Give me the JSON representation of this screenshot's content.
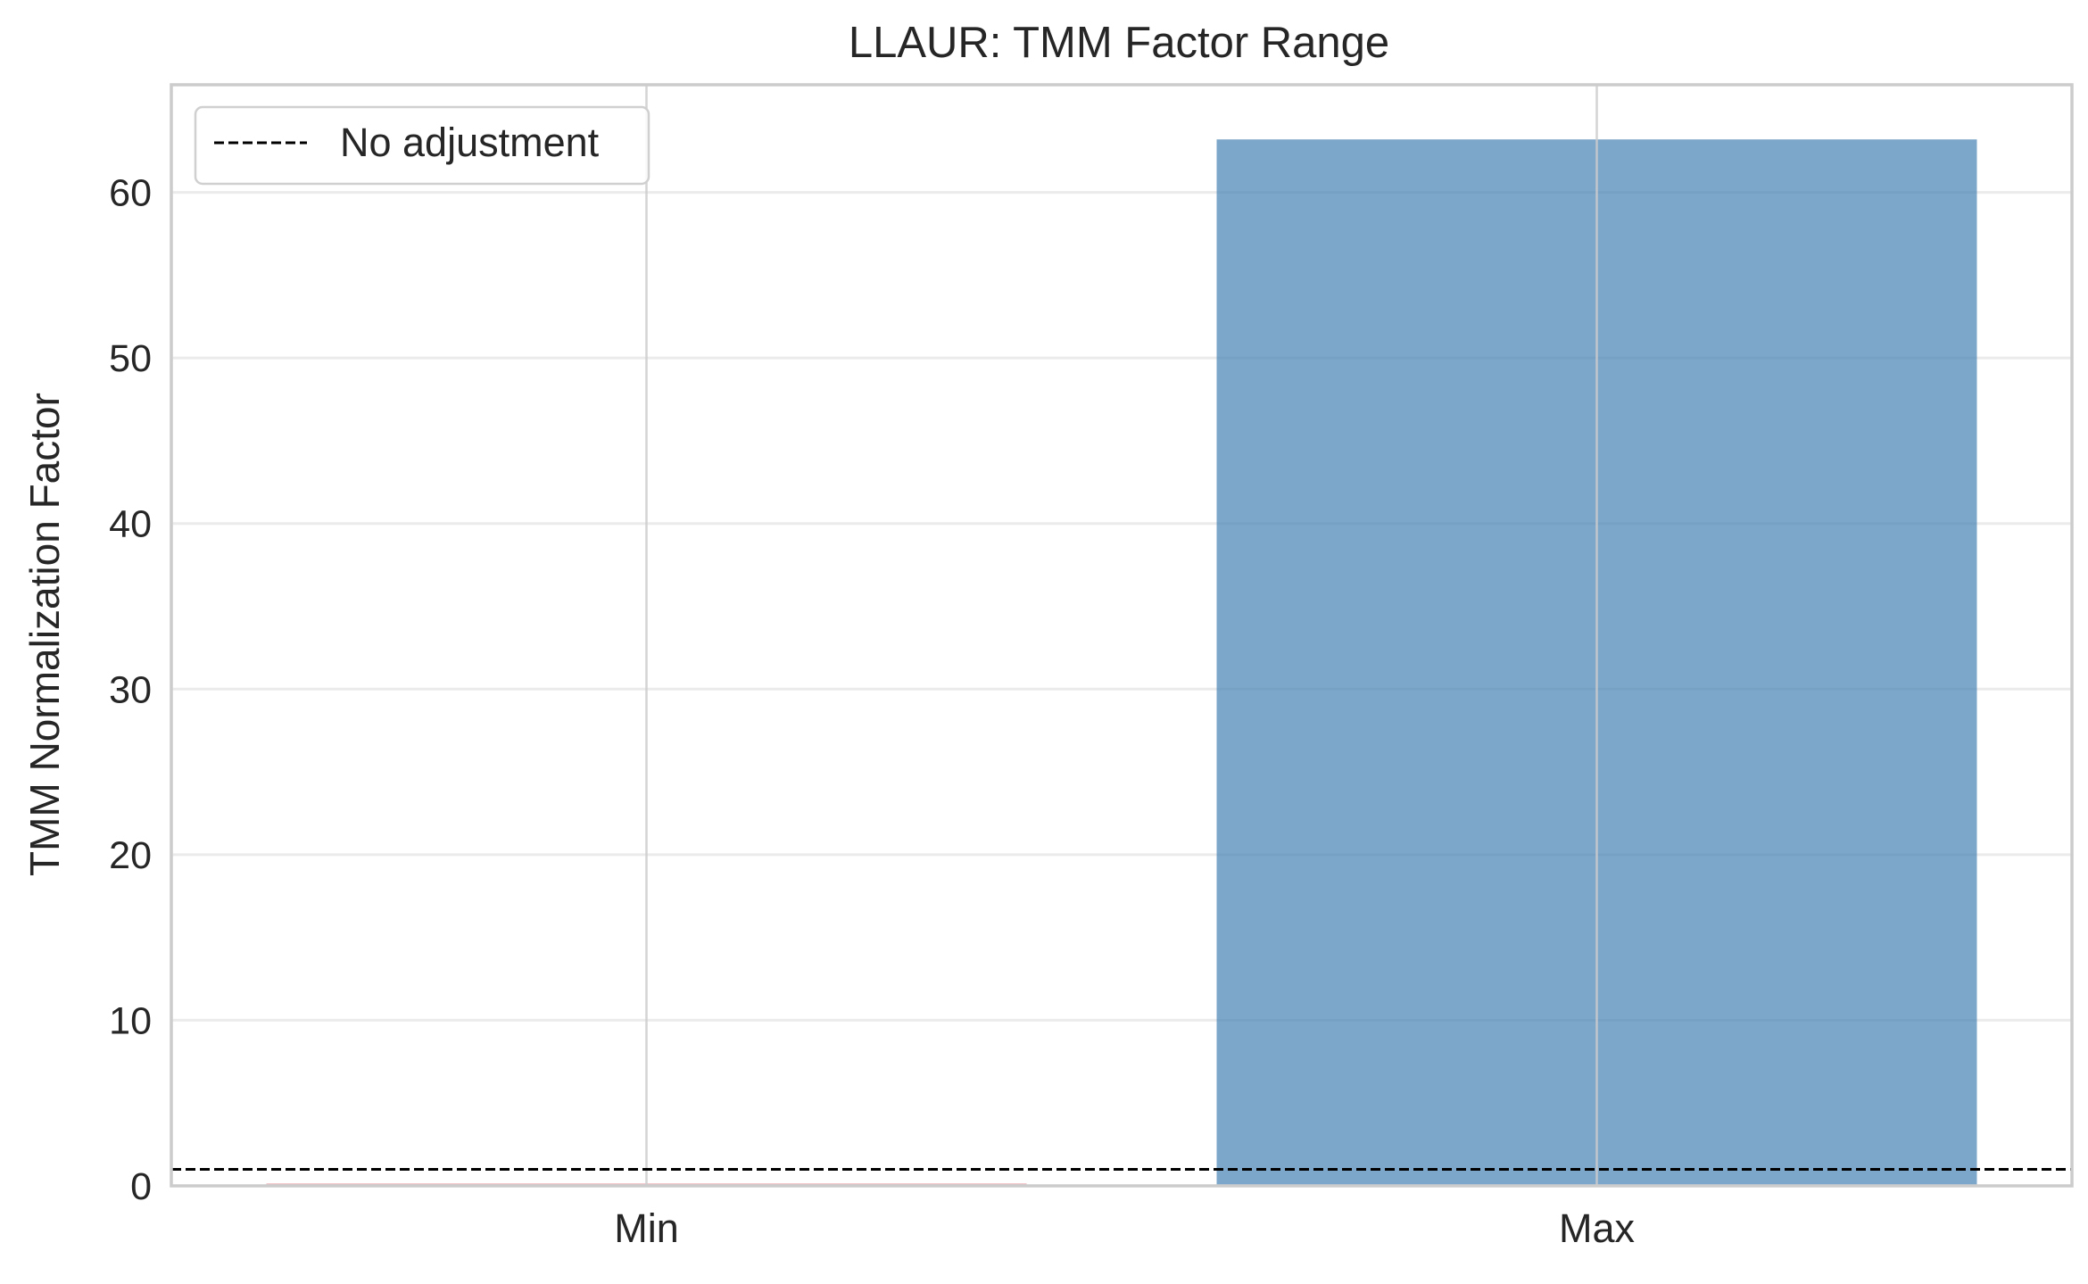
{
  "chart_data": {
    "type": "bar",
    "title": "LLAUR: TMM Factor Range",
    "xlabel": "",
    "ylabel": "TMM Normalization Factor",
    "categories": [
      "Min",
      "Max"
    ],
    "values": [
      0.15,
      63.2
    ],
    "ylim": [
      0,
      66.5
    ],
    "yticks": [
      0,
      10,
      20,
      30,
      40,
      50,
      60
    ],
    "grid": true,
    "bar_colors": [
      "#e8a0a6",
      "#4682b4"
    ],
    "bar_opacity": 0.7,
    "reference_line": {
      "y": 1,
      "style": "dashed",
      "color": "#000000",
      "label": "No adjustment"
    },
    "legend": {
      "placement": "top-left",
      "entries": [
        "No adjustment"
      ]
    }
  }
}
